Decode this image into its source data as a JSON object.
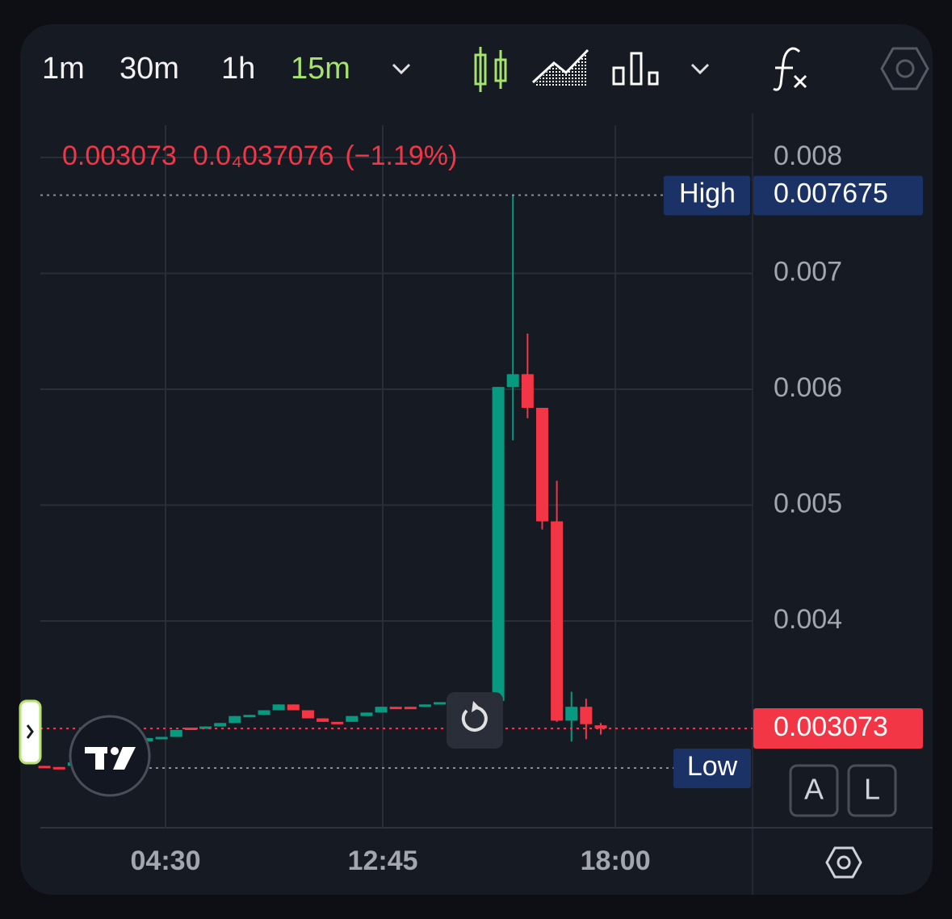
{
  "toolbar": {
    "timeframes": [
      "1m",
      "30m",
      "1h",
      "15m"
    ]
  },
  "chart_data": {
    "type": "candlestick",
    "legend_price": "0.003073",
    "legend_change": "0.0₄037076",
    "legend_change_pct": "(−1.19%)",
    "up_color": "#089981",
    "down_color": "#f23645",
    "xlim": [
      -0.28,
      48.37
    ],
    "xticks": [
      {
        "value": 8.27,
        "label": "04:30"
      },
      {
        "value": 23.11,
        "label": "12:45"
      },
      {
        "value": 39.0,
        "label": "18:00"
      }
    ],
    "ylim": [
      0.002216,
      0.008279
    ],
    "yticks": [
      0.004,
      0.005,
      0.006,
      0.007,
      0.008
    ],
    "grid": true,
    "open": [
      0.00275,
      0.00274,
      0.00275,
      0.00278,
      0.00282,
      0.00287,
      0.00292,
      0.00296,
      0.00299,
      0.003,
      0.00308,
      0.00308,
      0.00309,
      0.00312,
      0.00318,
      0.00319,
      0.00323,
      0.00328,
      0.00323,
      0.00316,
      0.00313,
      0.00313,
      0.00318,
      0.00321,
      0.00326,
      0.00326,
      0.00326,
      0.00328,
      0.0033,
      0.0033,
      0.0033,
      0.00331,
      0.00602,
      0.00613,
      0.00584,
      0.00486,
      0.00314,
      0.00326,
      0.0031
    ],
    "high": [
      0.00275,
      0.00274,
      0.00278,
      0.00282,
      0.00287,
      0.00292,
      0.00296,
      0.00299,
      0.003,
      0.00306,
      0.00308,
      0.00309,
      0.00312,
      0.00318,
      0.00319,
      0.00323,
      0.00328,
      0.00328,
      0.00323,
      0.00316,
      0.00313,
      0.00318,
      0.00321,
      0.00326,
      0.00326,
      0.00326,
      0.00328,
      0.0033,
      0.00331,
      0.00331,
      0.00331,
      0.00602,
      0.007675,
      0.00648,
      0.00584,
      0.00521,
      0.00339,
      0.00333,
      0.00312
    ],
    "low": [
      0.00274,
      0.002732,
      0.00275,
      0.00278,
      0.00282,
      0.00287,
      0.00292,
      0.00296,
      0.00299,
      0.003,
      0.00307,
      0.00308,
      0.00309,
      0.00312,
      0.00318,
      0.00319,
      0.00323,
      0.00323,
      0.00316,
      0.00313,
      0.00312,
      0.00313,
      0.00318,
      0.00321,
      0.00325,
      0.00325,
      0.00326,
      0.00328,
      0.00329,
      0.00329,
      0.00329,
      0.00331,
      0.00556,
      0.00575,
      0.00479,
      0.00313,
      0.00296,
      0.00298,
      0.00302
    ],
    "close": [
      0.00274,
      0.002735,
      0.00278,
      0.00282,
      0.00287,
      0.00292,
      0.00296,
      0.00299,
      0.003,
      0.00306,
      0.00307,
      0.00309,
      0.00312,
      0.00318,
      0.00319,
      0.00323,
      0.00328,
      0.00323,
      0.00316,
      0.00313,
      0.00312,
      0.00318,
      0.00321,
      0.00326,
      0.00325,
      0.00325,
      0.00328,
      0.0033,
      0.0033,
      0.0033,
      0.00331,
      0.00602,
      0.00613,
      0.00584,
      0.00486,
      0.00314,
      0.00326,
      0.00311,
      0.003073
    ],
    "high_label": "High",
    "high_line": 0.007675,
    "low_label": "Low",
    "low_line": 0.002732,
    "last_price": 0.003073,
    "scale_buttons": [
      "A",
      "L"
    ]
  }
}
